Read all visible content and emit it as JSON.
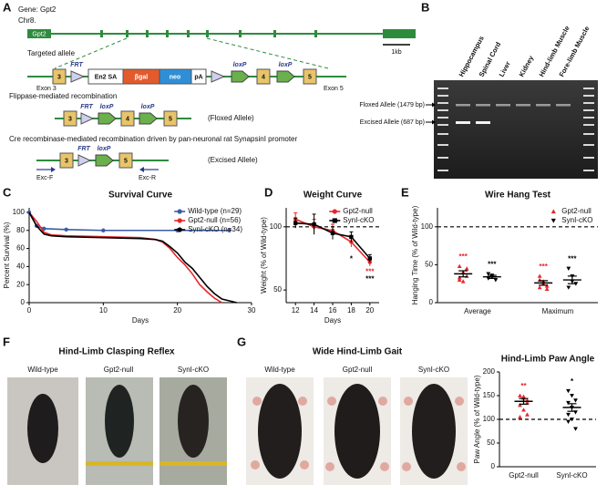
{
  "panel_a": {
    "letter": "A",
    "gene": "Gene: Gpt2",
    "chromosome": "Chr8.",
    "gene_bar_label": "Gpt2",
    "scale_label": "1kb",
    "targeted": {
      "title": "Targeted allele",
      "frt": "FRT",
      "exon3_label": "Exon 3",
      "exon3": "3",
      "en2sa": "En2 SA",
      "bgal": "βgal",
      "neo": "neo",
      "pa": "pA",
      "loxp1": "loxP",
      "exon4": "4",
      "loxp2": "loxP",
      "exon5": "5",
      "exon5_label": "Exon 5"
    },
    "floxed": {
      "title": "Flippase-mediated recombination",
      "frt": "FRT",
      "exon3": "3",
      "loxp1": "loxP",
      "exon4": "4",
      "loxp2": "loxP",
      "exon5": "5",
      "label": "(Floxed Allele)"
    },
    "excised": {
      "title": "Cre recombinase-mediated recombination driven by pan-neuronal rat SynapsinI promoter",
      "frt": "FRT",
      "exon3": "3",
      "loxp": "loxP",
      "exon5": "5",
      "label": "(Excised Allele)",
      "primer_f": "Exc-F",
      "primer_r": "Exc-R"
    }
  },
  "panel_b": {
    "letter": "B",
    "lanes": [
      "Hippocampus",
      "Spinal Cord",
      "Liver",
      "Kidney",
      "Hind-limb Muscle",
      "Fore-limb Muscle"
    ],
    "floxed_label": "Floxed Allele (1479 bp)",
    "excised_label": "Excised Allele (687 bp)"
  },
  "panel_c": {
    "letter": "C"
  },
  "panel_d": {
    "letter": "D"
  },
  "panel_e": {
    "letter": "E"
  },
  "panel_f": {
    "letter": "F",
    "title": "Hind-Limb Clasping Reflex",
    "photos": [
      "Wild-type",
      "Gpt2-null",
      "SynI-cKO"
    ]
  },
  "panel_g": {
    "letter": "G",
    "title": "Wide Hind-Limb Gait",
    "photos": [
      "Wild-type",
      "Gpt2-null",
      "SynI-cKO"
    ]
  },
  "chart_data": [
    {
      "type": "line",
      "title": "Survival Curve",
      "xlabel": "Days",
      "ylabel": "Percent Survival (%)",
      "xlim": [
        0,
        30
      ],
      "ylim": [
        0,
        105
      ],
      "xticks": [
        0,
        10,
        20,
        30
      ],
      "yticks": [
        0,
        20,
        40,
        60,
        80,
        100
      ],
      "legend": "upper right",
      "series": [
        {
          "name": "Wild-type (n=29)",
          "color": "#3b5ba7",
          "marker": "circle",
          "x": [
            0,
            1,
            2,
            5,
            10,
            20,
            27
          ],
          "values": [
            100,
            85,
            82,
            81,
            80,
            80,
            80
          ]
        },
        {
          "name": "Gpt2-null (n=56)",
          "color": "#e8262b",
          "x": [
            0,
            1,
            2,
            3,
            5,
            10,
            15,
            17,
            18,
            19,
            20,
            21,
            22,
            23,
            24,
            25,
            26
          ],
          "values": [
            100,
            90,
            78,
            75,
            74,
            73,
            72,
            70,
            67,
            60,
            50,
            42,
            32,
            20,
            12,
            5,
            0
          ]
        },
        {
          "name": "SynI-cKO (n=34)",
          "color": "#000000",
          "x": [
            0,
            1,
            2,
            3,
            5,
            10,
            15,
            17,
            18,
            19,
            20,
            21,
            22,
            23,
            24,
            25,
            26,
            27,
            28
          ],
          "values": [
            100,
            85,
            76,
            74,
            73,
            72,
            71,
            70,
            68,
            62,
            55,
            45,
            38,
            28,
            18,
            10,
            4,
            2,
            0
          ]
        }
      ]
    },
    {
      "type": "line",
      "title": "Weight Curve",
      "xlabel": "Days",
      "ylabel": "Weight (% of Wild-type)",
      "xlim": [
        11,
        21
      ],
      "ylim": [
        40,
        115
      ],
      "xticks": [
        12,
        14,
        16,
        18,
        20
      ],
      "yticks": [
        50,
        100
      ],
      "reference_line": 100,
      "legend": "upper right",
      "x": [
        12,
        14,
        16,
        18,
        20
      ],
      "series": [
        {
          "name": "Gpt2-null",
          "color": "#e8262b",
          "marker": "circle",
          "values": [
            106,
            100,
            97,
            88,
            72
          ],
          "errors": [
            5,
            6,
            5,
            4,
            3
          ],
          "significance": [
            null,
            null,
            null,
            null,
            "***"
          ]
        },
        {
          "name": "SynI-cKO",
          "color": "#000000",
          "marker": "square",
          "values": [
            103,
            102,
            95,
            92,
            75
          ],
          "errors": [
            4,
            8,
            5,
            4,
            3
          ],
          "significance": [
            null,
            null,
            null,
            "*",
            "***"
          ]
        }
      ]
    },
    {
      "type": "dot",
      "title": "Wire Hang Test",
      "ylabel": "Hanging Time (% of Wild-type)",
      "ylim": [
        0,
        125
      ],
      "yticks": [
        0,
        50,
        100
      ],
      "reference_line": 100,
      "legend": "upper right",
      "categories": [
        "Average",
        "Maximum"
      ],
      "series": [
        {
          "name": "Gpt2-null",
          "color": "#e8262b",
          "marker": "triangle",
          "points": [
            [
              48,
              40,
              35,
              30,
              28,
              45,
              33
            ],
            [
              35,
              25,
              22,
              20,
              28,
              18,
              30
            ]
          ],
          "means": [
            38,
            26
          ],
          "sem": [
            4,
            3
          ],
          "significance": [
            "***",
            "***"
          ]
        },
        {
          "name": "SynI-cKO",
          "color": "#000000",
          "marker": "triangle-down",
          "points": [
            [
              38,
              34,
              30,
              32,
              36
            ],
            [
              45,
              35,
              25,
              20,
              28
            ]
          ],
          "means": [
            34,
            30
          ],
          "sem": [
            2,
            5
          ],
          "significance": [
            "***",
            "***"
          ]
        }
      ]
    },
    {
      "type": "dot",
      "title": "Hind-Limb Paw Angle",
      "ylabel": "Paw Angle (% of Wild-type)",
      "ylim": [
        0,
        200
      ],
      "yticks": [
        0,
        50,
        100,
        150,
        200
      ],
      "reference_line": 100,
      "categories": [
        "Gpt2-null",
        "SynI-cKO"
      ],
      "colors": [
        "#e8262b",
        "#000000"
      ],
      "markers": [
        "triangle",
        "triangle-down"
      ],
      "points": [
        [
          150,
          145,
          140,
          130,
          120,
          110,
          105,
          148,
          135
        ],
        [
          160,
          150,
          140,
          135,
          125,
          115,
          110,
          100,
          80,
          95
        ]
      ],
      "means": [
        138,
        125
      ],
      "sem": [
        6,
        8
      ],
      "significance": [
        "**",
        "*"
      ]
    }
  ]
}
